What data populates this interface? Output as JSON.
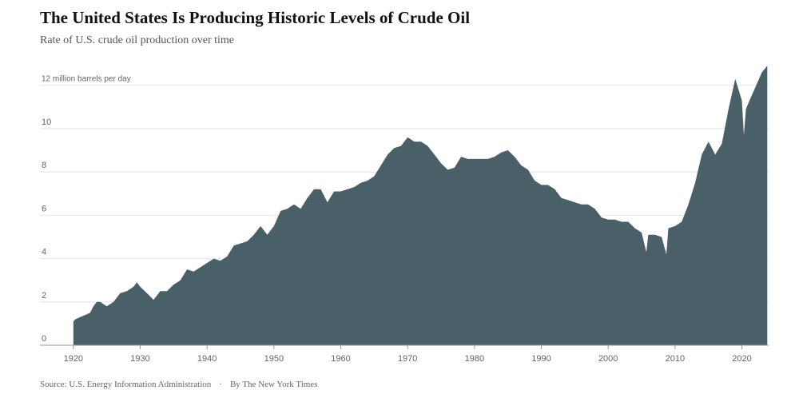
{
  "chart_data": {
    "type": "area",
    "title": "The United States Is Producing Historic Levels of Crude Oil",
    "subtitle": "Rate of U.S. crude oil production over time",
    "ylabel": "12 million barrels per day",
    "xlabel": "",
    "xlim": [
      1915,
      2024
    ],
    "ylim": [
      0,
      12.8
    ],
    "x_ticks": [
      1920,
      1930,
      1940,
      1950,
      1960,
      1970,
      1980,
      1990,
      2000,
      2010,
      2020
    ],
    "y_ticks": [
      0,
      2,
      4,
      6,
      8,
      10,
      12
    ],
    "y_tick_labels": [
      "0",
      "2",
      "4",
      "6",
      "8",
      "10",
      ""
    ],
    "grid": "horizontal",
    "colors": {
      "fill": "#4a6068",
      "grid": "#e4e4e4",
      "axis": "#999999"
    },
    "series": [
      {
        "x": [
          1920,
          1920.3,
          1921,
          1921.8,
          1922.5,
          1923,
          1923.5,
          1924,
          1925,
          1926,
          1927,
          1928,
          1929,
          1929.5,
          1930,
          1931,
          1932,
          1933,
          1934,
          1935,
          1936,
          1937,
          1938,
          1939,
          1940,
          1941,
          1942,
          1943,
          1944,
          1945,
          1946,
          1947,
          1948,
          1949,
          1950,
          1951,
          1952,
          1953,
          1954,
          1955,
          1956,
          1957,
          1958,
          1959,
          1960,
          1961,
          1962,
          1963,
          1964,
          1965,
          1966,
          1967,
          1968,
          1969,
          1970,
          1971,
          1972,
          1973,
          1974,
          1975,
          1976,
          1977,
          1978,
          1979,
          1980,
          1981,
          1982,
          1983,
          1984,
          1985,
          1986,
          1987,
          1988,
          1989,
          1990,
          1991,
          1992,
          1993,
          1994,
          1995,
          1996,
          1997,
          1998,
          1999,
          2000,
          2001,
          2002,
          2003,
          2004,
          2005,
          2005.7,
          2006,
          2007,
          2008,
          2008.7,
          2009,
          2010,
          2011,
          2012,
          2013,
          2014,
          2015,
          2016,
          2017,
          2018,
          2019,
          2020,
          2020.3,
          2020.6,
          2021,
          2022,
          2023,
          2023.8
        ],
        "values": [
          1.1,
          1.2,
          1.3,
          1.4,
          1.5,
          1.8,
          2.0,
          2.0,
          1.8,
          2.0,
          2.4,
          2.5,
          2.7,
          2.9,
          2.7,
          2.4,
          2.1,
          2.5,
          2.5,
          2.8,
          3.0,
          3.5,
          3.4,
          3.6,
          3.8,
          4.0,
          3.9,
          4.1,
          4.6,
          4.7,
          4.8,
          5.1,
          5.5,
          5.1,
          5.5,
          6.2,
          6.3,
          6.5,
          6.3,
          6.8,
          7.2,
          7.2,
          6.6,
          7.1,
          7.1,
          7.2,
          7.3,
          7.5,
          7.6,
          7.8,
          8.3,
          8.8,
          9.1,
          9.2,
          9.6,
          9.4,
          9.4,
          9.2,
          8.8,
          8.4,
          8.1,
          8.2,
          8.7,
          8.6,
          8.6,
          8.6,
          8.6,
          8.7,
          8.9,
          9.0,
          8.7,
          8.3,
          8.1,
          7.6,
          7.4,
          7.4,
          7.2,
          6.8,
          6.7,
          6.6,
          6.5,
          6.5,
          6.3,
          5.9,
          5.8,
          5.8,
          5.7,
          5.7,
          5.4,
          5.2,
          4.3,
          5.1,
          5.1,
          5.0,
          4.2,
          5.4,
          5.5,
          5.7,
          6.5,
          7.5,
          8.8,
          9.4,
          8.8,
          9.3,
          10.9,
          12.3,
          11.3,
          9.7,
          10.9,
          11.2,
          11.9,
          12.6,
          12.9
        ]
      }
    ]
  },
  "footer": {
    "source": "Source: U.S. Energy Information Administration",
    "separator": "·",
    "byline": "By The New York Times"
  }
}
